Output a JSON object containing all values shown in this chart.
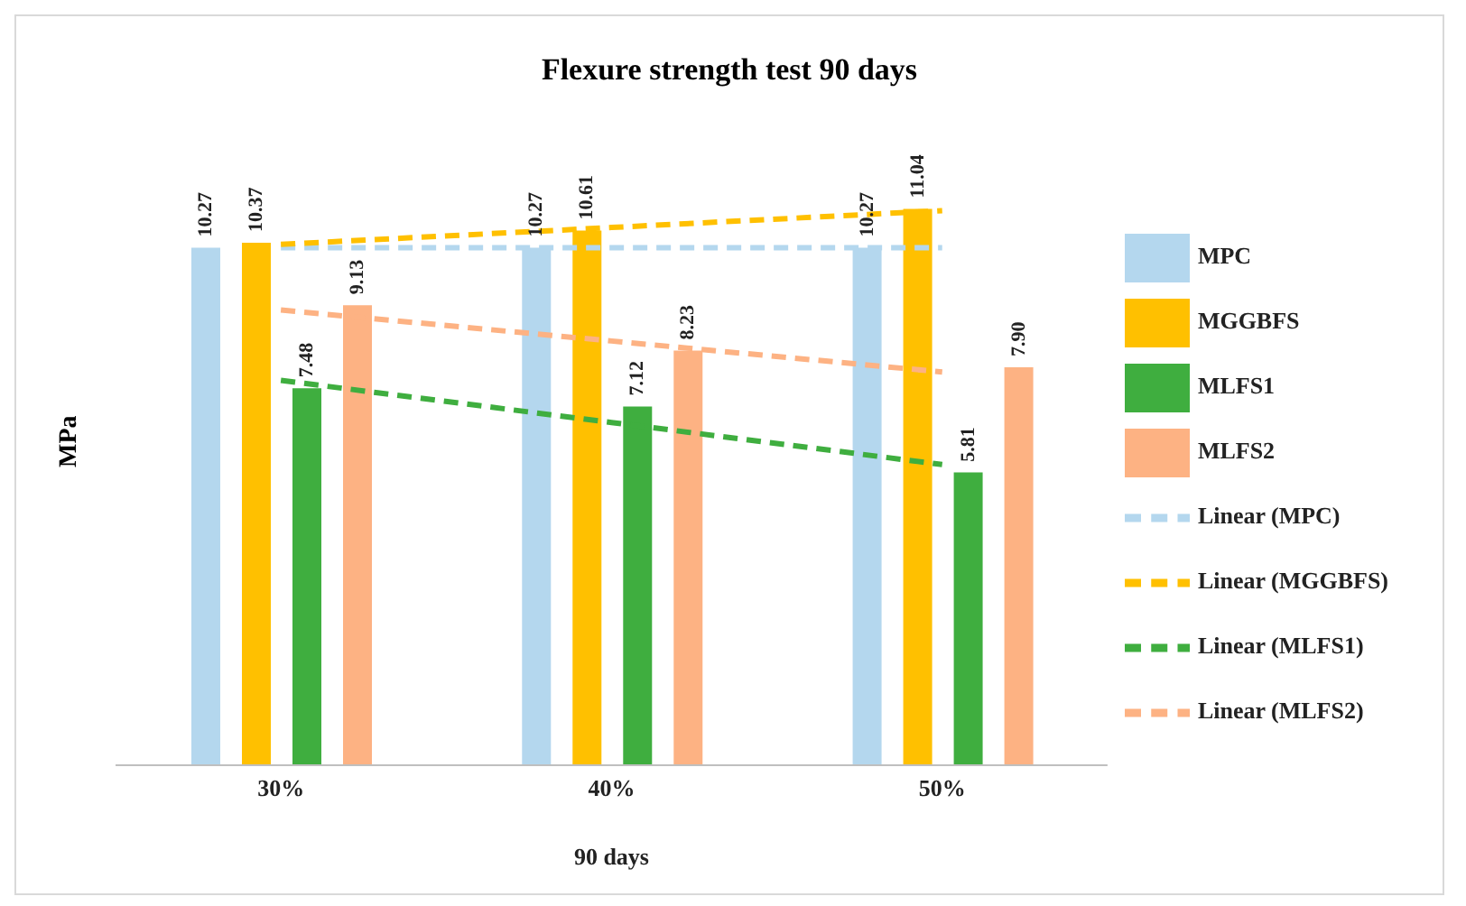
{
  "chart_data": {
    "type": "bar",
    "title": "Flexure strength test 90 days",
    "xlabel": "90 days",
    "ylabel": "MPa",
    "categories": [
      "30%",
      "40%",
      "50%"
    ],
    "series": [
      {
        "name": "MPC",
        "color": "#b4d7ee",
        "values": [
          10.27,
          10.27,
          10.27
        ],
        "value_labels": [
          "10.27",
          "10.27",
          "10.27"
        ]
      },
      {
        "name": "MGGBFS",
        "color": "#ffc000",
        "values": [
          10.37,
          10.61,
          11.04
        ],
        "value_labels": [
          "10.37",
          "10.61",
          "11.04"
        ]
      },
      {
        "name": "MLFS1",
        "color": "#3fae3f",
        "values": [
          7.48,
          7.12,
          5.81
        ],
        "value_labels": [
          "7.48",
          "7.12",
          "5.81"
        ]
      },
      {
        "name": "MLFS2",
        "color": "#fdb283",
        "values": [
          9.13,
          8.23,
          7.9
        ],
        "value_labels": [
          "9.13",
          "8.23",
          "7.90"
        ]
      },
      {
        "name": "Linear (MPC)",
        "type": "line",
        "color": "#b4d7ee",
        "x": [
          "30%",
          "40%",
          "50%"
        ],
        "values": [
          10.27,
          10.27,
          10.27
        ],
        "line_style": "dashed",
        "marker": "none"
      },
      {
        "name": "Linear (MGGBFS)",
        "type": "line",
        "color": "#ffc000",
        "x": [
          "30%",
          "40%",
          "50%"
        ],
        "values": [
          10.338,
          10.673,
          11.008
        ],
        "line_style": "dashed",
        "marker": "none"
      },
      {
        "name": "Linear (MLFS1)",
        "type": "line",
        "color": "#3fae3f",
        "x": [
          "30%",
          "40%",
          "50%"
        ],
        "values": [
          7.638,
          6.803,
          5.968
        ],
        "line_style": "dashed",
        "marker": "none"
      },
      {
        "name": "Linear (MLFS2)",
        "type": "line",
        "color": "#fdb283",
        "x": [
          "30%",
          "40%",
          "50%"
        ],
        "values": [
          9.035,
          8.42,
          7.805
        ],
        "line_style": "dashed",
        "marker": "none"
      }
    ],
    "tick_labels": "x",
    "legend": "right"
  }
}
